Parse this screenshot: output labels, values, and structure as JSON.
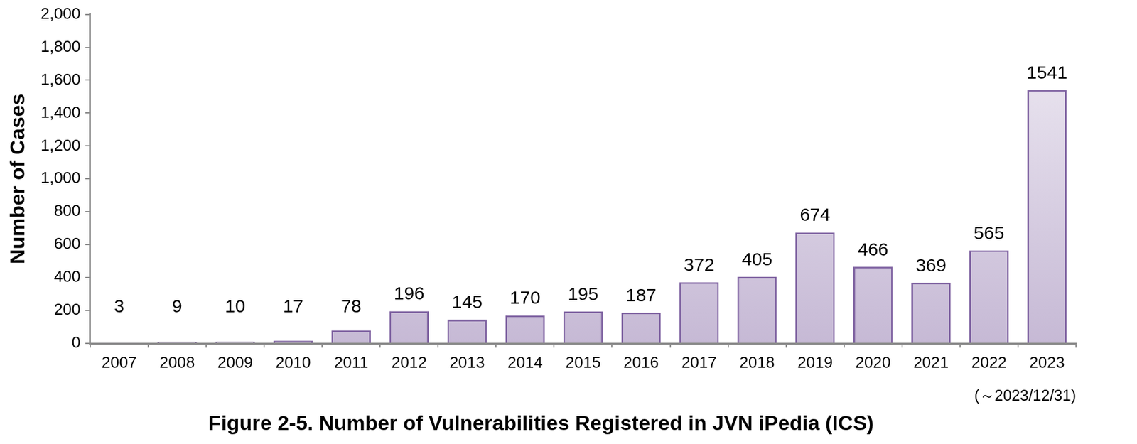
{
  "chart_data": {
    "type": "bar",
    "title": "Figure 2-5. Number of Vulnerabilities Registered in JVN iPedia (ICS)",
    "y_label": "Number of Cases",
    "annotation": "(～2023/12/31)",
    "categories": [
      "2007",
      "2008",
      "2009",
      "2010",
      "2011",
      "2012",
      "2013",
      "2014",
      "2015",
      "2016",
      "2017",
      "2018",
      "2019",
      "2020",
      "2021",
      "2022",
      "2023"
    ],
    "values": [
      3,
      9,
      10,
      17,
      78,
      196,
      145,
      170,
      195,
      187,
      372,
      405,
      674,
      466,
      369,
      565,
      1541
    ],
    "color": "#8064a2",
    "ylim": [
      0,
      2000
    ],
    "yticks": [
      0,
      200,
      400,
      600,
      800,
      {
        "value": 1000,
        "label": "1,000"
      },
      {
        "value": 1200,
        "label": "1,200"
      },
      {
        "value": 1400,
        "label": "1,400"
      },
      {
        "value": 1600,
        "label": "1,600"
      },
      {
        "value": 1800,
        "label": "1,800"
      },
      {
        "value": 2000,
        "label": "2,000"
      }
    ],
    "grid": false,
    "data_labels": true
  }
}
